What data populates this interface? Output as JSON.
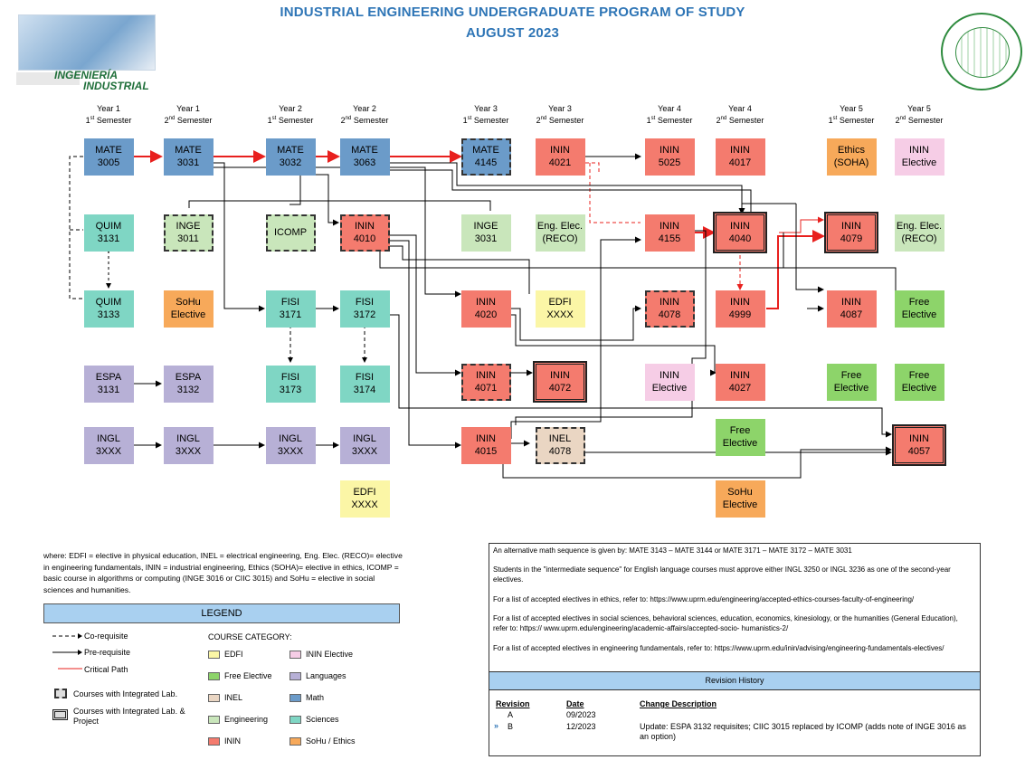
{
  "header": {
    "title": "INDUSTRIAL ENGINEERING UNDERGRADUATE PROGRAM OF STUDY",
    "subtitle": "AUGUST 2023"
  },
  "logo": {
    "line1": "INGENIERÍA",
    "line2": "INDUSTRIAL"
  },
  "semesters": [
    {
      "year": "Year 1",
      "sem": "1",
      "suf": "st",
      "word": " Semester"
    },
    {
      "year": "Year 1",
      "sem": "2",
      "suf": "nd",
      "word": " Semester"
    },
    {
      "year": "Year 2",
      "sem": "1",
      "suf": "st",
      "word": " Semester"
    },
    {
      "year": "Year 2",
      "sem": "2",
      "suf": "nd",
      "word": " Semester"
    },
    {
      "year": "Year 3",
      "sem": "1",
      "suf": "st",
      "word": " Semester"
    },
    {
      "year": "Year 3",
      "sem": "2",
      "suf": "nd",
      "word": " Semester"
    },
    {
      "year": "Year 4",
      "sem": "1",
      "suf": "st",
      "word": " Semester"
    },
    {
      "year": "Year 4",
      "sem": "2",
      "suf": "nd",
      "word": " Semester"
    },
    {
      "year": "Year 5",
      "sem": "1",
      "suf": "st",
      "word": " Semester"
    },
    {
      "year": "Year 5",
      "sem": "2",
      "suf": "nd",
      "word": " Semester"
    }
  ],
  "courses": [
    {
      "id": "mate3005",
      "l1": "MATE",
      "l2": "3005"
    },
    {
      "id": "mate3031",
      "l1": "MATE",
      "l2": "3031"
    },
    {
      "id": "mate3032",
      "l1": "MATE",
      "l2": "3032"
    },
    {
      "id": "mate3063",
      "l1": "MATE",
      "l2": "3063"
    },
    {
      "id": "mate4145",
      "l1": "MATE",
      "l2": "4145"
    },
    {
      "id": "inin4021",
      "l1": "ININ",
      "l2": "4021"
    },
    {
      "id": "inin5025",
      "l1": "ININ",
      "l2": "5025"
    },
    {
      "id": "inin4017",
      "l1": "ININ",
      "l2": "4017"
    },
    {
      "id": "ethics",
      "l1": "Ethics",
      "l2": "(SOHA)"
    },
    {
      "id": "ininelec1",
      "l1": "ININ",
      "l2": "Elective"
    },
    {
      "id": "quim3131",
      "l1": "QUIM",
      "l2": "3131"
    },
    {
      "id": "inge3011",
      "l1": "INGE",
      "l2": "3011"
    },
    {
      "id": "icomp",
      "l1": "ICOMP",
      "l2": ""
    },
    {
      "id": "inin4010",
      "l1": "ININ",
      "l2": "4010"
    },
    {
      "id": "inge3031",
      "l1": "INGE",
      "l2": "3031"
    },
    {
      "id": "engelec1",
      "l1": "Eng. Elec.",
      "l2": "(RECO)"
    },
    {
      "id": "inin4155",
      "l1": "ININ",
      "l2": "4155"
    },
    {
      "id": "inin4040",
      "l1": "ININ",
      "l2": "4040"
    },
    {
      "id": "inin4079",
      "l1": "ININ",
      "l2": "4079"
    },
    {
      "id": "engelec2",
      "l1": "Eng. Elec.",
      "l2": "(RECO)"
    },
    {
      "id": "quim3133",
      "l1": "QUIM",
      "l2": "3133"
    },
    {
      "id": "sohu1",
      "l1": "SoHu",
      "l2": "Elective"
    },
    {
      "id": "fisi3171",
      "l1": "FISI",
      "l2": "3171"
    },
    {
      "id": "fisi3172",
      "l1": "FISI",
      "l2": "3172"
    },
    {
      "id": "inin4020",
      "l1": "ININ",
      "l2": "4020"
    },
    {
      "id": "edfi1",
      "l1": "EDFI",
      "l2": "XXXX"
    },
    {
      "id": "inin4078",
      "l1": "ININ",
      "l2": "4078"
    },
    {
      "id": "inin4999",
      "l1": "ININ",
      "l2": "4999"
    },
    {
      "id": "inin4087",
      "l1": "ININ",
      "l2": "4087"
    },
    {
      "id": "free1",
      "l1": "Free",
      "l2": "Elective"
    },
    {
      "id": "espa3131",
      "l1": "ESPA",
      "l2": "3131"
    },
    {
      "id": "espa3132",
      "l1": "ESPA",
      "l2": "3132"
    },
    {
      "id": "fisi3173",
      "l1": "FISI",
      "l2": "3173"
    },
    {
      "id": "fisi3174",
      "l1": "FISI",
      "l2": "3174"
    },
    {
      "id": "inin4071",
      "l1": "ININ",
      "l2": "4071"
    },
    {
      "id": "inin4072",
      "l1": "ININ",
      "l2": "4072"
    },
    {
      "id": "ininelec2",
      "l1": "ININ",
      "l2": "Elective"
    },
    {
      "id": "inin4027",
      "l1": "ININ",
      "l2": "4027"
    },
    {
      "id": "free2",
      "l1": "Free",
      "l2": "Elective"
    },
    {
      "id": "free3",
      "l1": "Free",
      "l2": "Elective"
    },
    {
      "id": "ingl1",
      "l1": "INGL",
      "l2": "3XXX"
    },
    {
      "id": "ingl2",
      "l1": "INGL",
      "l2": "3XXX"
    },
    {
      "id": "ingl3",
      "l1": "INGL",
      "l2": "3XXX"
    },
    {
      "id": "ingl4",
      "l1": "INGL",
      "l2": "3XXX"
    },
    {
      "id": "inin4015",
      "l1": "ININ",
      "l2": "4015"
    },
    {
      "id": "inel4078",
      "l1": "INEL",
      "l2": "4078"
    },
    {
      "id": "free4",
      "l1": "Free",
      "l2": "Elective"
    },
    {
      "id": "inin4057",
      "l1": "ININ",
      "l2": "4057"
    },
    {
      "id": "edfi2",
      "l1": "EDFI",
      "l2": "XXXX"
    },
    {
      "id": "sohu2",
      "l1": "SoHu",
      "l2": "Elective"
    }
  ],
  "where_text": "where: EDFI = elective in physical education, INEL = electrical engineering, Eng. Elec. (RECO)= elective in engineering fundamentals, ININ = industrial engineering, Ethics (SOHA)= elective in ethics, ICOMP = basic course in algorithms or computing (INGE 3016 or CIIC 3015) and SoHu = elective in social sciences and humanities.",
  "legend": {
    "title": "LEGEND",
    "coreq": "Co-requisite",
    "prereq": "Pre-requisite",
    "critical": "Critical Path",
    "lab": "Courses with Integrated Lab.",
    "proj": "Courses with Integrated Lab. & Project",
    "category_title": "COURSE CATEGORY:",
    "categories": [
      "EDFI",
      "ININ Elective",
      "Free Elective",
      "Languages",
      "INEL",
      "Math",
      "Engineering",
      "Sciences",
      "ININ",
      "SoHu / Ethics"
    ],
    "colors": {
      "edfi": "#fbf6a6",
      "inin_elective": "#f6cde6",
      "free": "#8dd46a",
      "languages": "#b7b0d6",
      "inel": "#ead6c3",
      "math": "#6b9bc9",
      "engineering": "#c9e6bb",
      "sciences": "#7fd6c4",
      "inin": "#f47b6e",
      "sohu": "#f7a95a",
      "critical": "#e8201e"
    }
  },
  "notes": [
    "An alternative math sequence is given by: MATE 3143 – MATE 3144 or MATE 3171 – MATE 3172 – MATE 3031",
    "Students in the \"intermediate sequence\" for English language courses must approve either INGL 3250 or INGL 3236 as one of the second-year electives.",
    "For a list of accepted electives in ethics, refer to: https://www.uprm.edu/engineering/accepted-ethics-courses-faculty-of-engineering/",
    "For a list of accepted electives in social sciences, behavioral sciences, education, economics, kinesiology, or the humanities (General Education), refer to: https:// www.uprm.edu/engineering/academic-affairs/accepted-socio- humanistics-2/",
    "For a list of accepted electives in engineering fundamentals, refer to: https://www.uprm.edu/inin/advising/engineering-fundamentals-electives/"
  ],
  "revision": {
    "title": "Revision History",
    "h_rev": "Revision",
    "h_date": "Date",
    "h_desc": "Change Description",
    "rows": [
      {
        "rev": "A",
        "date": "09/2023",
        "desc": ""
      },
      {
        "rev": "B",
        "date": "12/2023",
        "desc": "Update: ESPA 3132 requisites; CIIC 3015 replaced by ICOMP (adds note of INGE 3016 as an option)"
      }
    ]
  }
}
